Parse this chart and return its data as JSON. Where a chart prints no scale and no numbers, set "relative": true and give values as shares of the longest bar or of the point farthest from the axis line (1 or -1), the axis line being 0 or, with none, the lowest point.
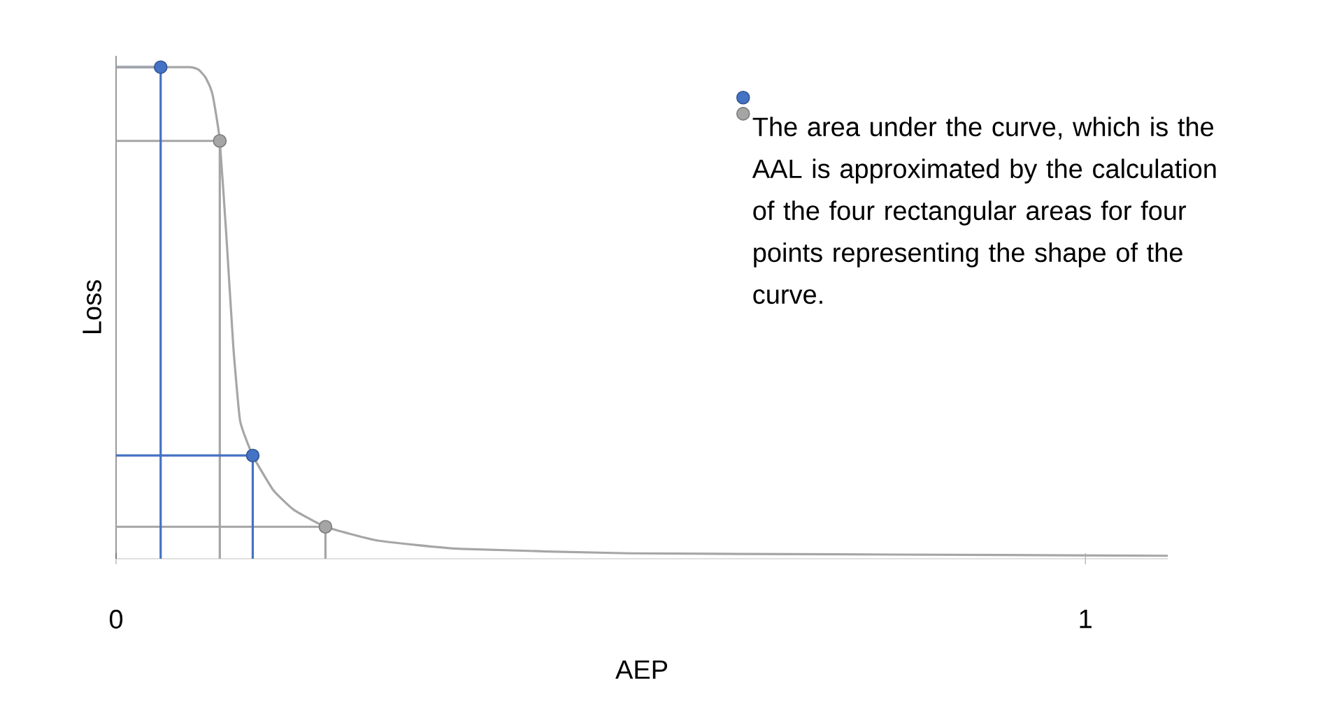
{
  "chart_data": {
    "type": "line",
    "relative": true,
    "xlabel": "AEP",
    "ylabel": "Loss",
    "xlim": [
      0,
      1.085
    ],
    "xticks": [
      0,
      1
    ],
    "legend": "top right",
    "series": [
      {
        "color": "#a5a5a5",
        "x": [
          0,
          0.216,
          0.216
        ],
        "values": [
          0.065,
          0.065,
          0
        ]
      },
      {
        "color": "#a5a5a5",
        "x": [
          0,
          0.107,
          0.107
        ],
        "values": [
          0.85,
          0.85,
          0
        ]
      },
      {
        "color": "#4472c4",
        "x": [
          0,
          0.141,
          0.141
        ],
        "values": [
          0.21,
          0.21,
          0
        ]
      },
      {
        "color": "#4472c4",
        "x": [
          0,
          0.046,
          0.046
        ],
        "values": [
          1.0,
          1.0,
          0
        ]
      },
      {
        "color": "#a6a6a6",
        "x": [
          0,
          0.075,
          0.085,
          0.092,
          0.097,
          0.1,
          0.107,
          0.114,
          0.121,
          0.128,
          0.141,
          0.162,
          0.183,
          0.216,
          0.27,
          0.356,
          0.53,
          0.746,
          1.085
        ],
        "values": [
          1.0,
          1.0,
          0.995,
          0.98,
          0.96,
          0.94,
          0.85,
          0.65,
          0.43,
          0.28,
          0.21,
          0.14,
          0.1,
          0.065,
          0.037,
          0.02,
          0.011,
          0.009,
          0.006
        ]
      },
      {
        "type": "scatter",
        "color": "#4472c4",
        "x": [
          0.046,
          0.141
        ],
        "values": [
          1.0,
          0.21
        ]
      },
      {
        "type": "scatter",
        "name": "The area under the curve, which is the AAL is approximated by the calculation of the four rectangular areas for four points representing the shape of the curve.",
        "color": "#a5a5a5",
        "x": [
          0.107,
          0.216
        ],
        "values": [
          0.85,
          0.065
        ]
      }
    ]
  }
}
